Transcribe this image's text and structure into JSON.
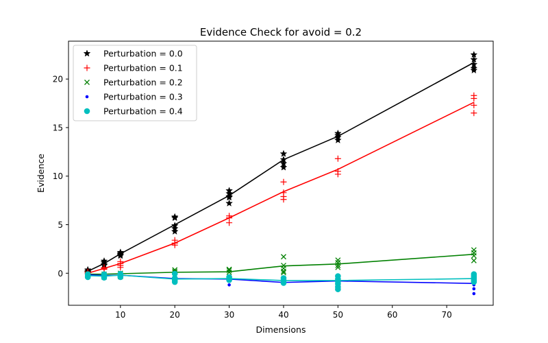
{
  "chart_data": {
    "type": "scatter",
    "title": "Evidence Check for avoid = 0.2",
    "xlabel": "Dimensions",
    "ylabel": "Evidence",
    "xlim": [
      0.45,
      78.55
    ],
    "ylim": [
      -3.3,
      23.9
    ],
    "xticks": [
      10,
      20,
      30,
      40,
      50,
      60,
      70
    ],
    "yticks": [
      0,
      5,
      10,
      15,
      20
    ],
    "grid": false,
    "legend_position": "top-left",
    "x": [
      4,
      7,
      10,
      20,
      30,
      40,
      50,
      75
    ],
    "series": [
      {
        "name": "Perturbation = 0.0",
        "color": "#000000",
        "marker": "star",
        "line": [
          0.2,
          1.0,
          2.0,
          5.0,
          8.0,
          11.7,
          14.1,
          21.7
        ],
        "points": [
          [
            4,
            0.35
          ],
          [
            4,
            0.2
          ],
          [
            4,
            0.1
          ],
          [
            4,
            0.05
          ],
          [
            7,
            1.25
          ],
          [
            7,
            1.1
          ],
          [
            7,
            0.9
          ],
          [
            7,
            0.8
          ],
          [
            10,
            2.15
          ],
          [
            10,
            2.0
          ],
          [
            10,
            1.9
          ],
          [
            10,
            1.8
          ],
          [
            20,
            5.8
          ],
          [
            20,
            5.7
          ],
          [
            20,
            4.9
          ],
          [
            20,
            4.6
          ],
          [
            20,
            4.3
          ],
          [
            30,
            8.5
          ],
          [
            30,
            8.2
          ],
          [
            30,
            7.9
          ],
          [
            30,
            7.8
          ],
          [
            30,
            7.2
          ],
          [
            40,
            12.3
          ],
          [
            40,
            11.7
          ],
          [
            40,
            11.3
          ],
          [
            40,
            10.9
          ],
          [
            50,
            14.4
          ],
          [
            50,
            14.2
          ],
          [
            50,
            14.0
          ],
          [
            50,
            13.7
          ],
          [
            75,
            22.5
          ],
          [
            75,
            22.0
          ],
          [
            75,
            21.5
          ],
          [
            75,
            21.1
          ],
          [
            75,
            20.9
          ]
        ]
      },
      {
        "name": "Perturbation = 0.1",
        "color": "#ff0000",
        "marker": "plus",
        "line": [
          0.0,
          0.5,
          1.0,
          3.1,
          5.7,
          8.4,
          10.7,
          17.6
        ],
        "points": [
          [
            4,
            0.15
          ],
          [
            4,
            0.05
          ],
          [
            4,
            -0.05
          ],
          [
            7,
            0.6
          ],
          [
            7,
            0.5
          ],
          [
            7,
            0.4
          ],
          [
            10,
            1.2
          ],
          [
            10,
            1.0
          ],
          [
            10,
            0.8
          ],
          [
            10,
            0.6
          ],
          [
            20,
            3.4
          ],
          [
            20,
            3.1
          ],
          [
            20,
            2.9
          ],
          [
            30,
            5.9
          ],
          [
            30,
            5.7
          ],
          [
            30,
            5.2
          ],
          [
            40,
            9.4
          ],
          [
            40,
            8.3
          ],
          [
            40,
            7.9
          ],
          [
            40,
            7.6
          ],
          [
            50,
            11.8
          ],
          [
            50,
            10.5
          ],
          [
            50,
            10.2
          ],
          [
            75,
            18.3
          ],
          [
            75,
            18.0
          ],
          [
            75,
            17.3
          ],
          [
            75,
            16.5
          ]
        ]
      },
      {
        "name": "Perturbation = 0.2",
        "color": "#008000",
        "marker": "x",
        "line": [
          -0.1,
          -0.1,
          -0.05,
          0.1,
          0.15,
          0.75,
          0.95,
          1.95
        ],
        "points": [
          [
            4,
            -0.1
          ],
          [
            4,
            -0.2
          ],
          [
            4,
            -0.3
          ],
          [
            7,
            -0.1
          ],
          [
            7,
            -0.3
          ],
          [
            7,
            -0.4
          ],
          [
            10,
            0.0
          ],
          [
            10,
            -0.2
          ],
          [
            10,
            -0.35
          ],
          [
            20,
            0.35
          ],
          [
            20,
            0.2
          ],
          [
            20,
            0.05
          ],
          [
            30,
            0.4
          ],
          [
            30,
            0.3
          ],
          [
            30,
            0.1
          ],
          [
            40,
            1.7
          ],
          [
            40,
            0.8
          ],
          [
            40,
            0.5
          ],
          [
            40,
            0.2
          ],
          [
            40,
            0.05
          ],
          [
            50,
            1.35
          ],
          [
            50,
            1.1
          ],
          [
            50,
            0.8
          ],
          [
            50,
            0.6
          ],
          [
            75,
            2.4
          ],
          [
            75,
            2.1
          ],
          [
            75,
            1.8
          ],
          [
            75,
            1.3
          ]
        ]
      },
      {
        "name": "Perturbation = 0.3",
        "color": "#0000ff",
        "marker": "dot",
        "line": [
          -0.15,
          -0.25,
          -0.2,
          -0.55,
          -0.6,
          -0.95,
          -0.8,
          -1.05
        ],
        "points": [
          [
            4,
            -0.1
          ],
          [
            4,
            -0.3
          ],
          [
            7,
            -0.2
          ],
          [
            7,
            -0.4
          ],
          [
            10,
            -0.1
          ],
          [
            10,
            -0.3
          ],
          [
            20,
            -0.5
          ],
          [
            20,
            -0.8
          ],
          [
            30,
            -0.6
          ],
          [
            30,
            -1.2
          ],
          [
            40,
            -0.9
          ],
          [
            40,
            -1.1
          ],
          [
            50,
            -0.8
          ],
          [
            50,
            -1.1
          ],
          [
            75,
            -1.2
          ],
          [
            75,
            -1.6
          ],
          [
            75,
            -2.1
          ]
        ]
      },
      {
        "name": "Perturbation = 0.4",
        "color": "#00bfbf",
        "marker": "circle",
        "line": [
          -0.25,
          -0.3,
          -0.2,
          -0.6,
          -0.55,
          -0.75,
          -0.75,
          -0.55
        ],
        "points": [
          [
            4,
            -0.1
          ],
          [
            4,
            -0.25
          ],
          [
            4,
            -0.4
          ],
          [
            7,
            -0.1
          ],
          [
            7,
            -0.3
          ],
          [
            7,
            -0.45
          ],
          [
            10,
            -0.05
          ],
          [
            10,
            -0.25
          ],
          [
            10,
            -0.4
          ],
          [
            20,
            -0.05
          ],
          [
            20,
            -0.5
          ],
          [
            20,
            -0.7
          ],
          [
            20,
            -0.9
          ],
          [
            30,
            -0.4
          ],
          [
            30,
            -0.55
          ],
          [
            30,
            -0.7
          ],
          [
            40,
            -0.5
          ],
          [
            40,
            -0.7
          ],
          [
            40,
            -0.9
          ],
          [
            40,
            -1.0
          ],
          [
            50,
            -0.3
          ],
          [
            50,
            -0.6
          ],
          [
            50,
            -0.85
          ],
          [
            50,
            -1.1
          ],
          [
            50,
            -1.4
          ],
          [
            50,
            -1.65
          ],
          [
            75,
            -0.1
          ],
          [
            75,
            -0.3
          ],
          [
            75,
            -0.5
          ],
          [
            75,
            -0.7
          ],
          [
            75,
            -0.9
          ]
        ]
      }
    ]
  }
}
